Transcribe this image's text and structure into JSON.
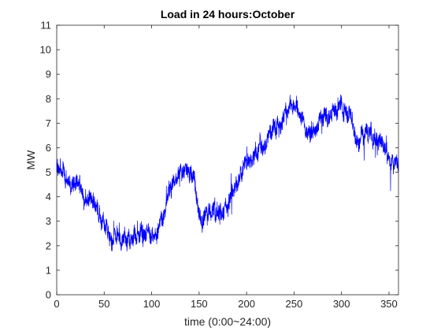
{
  "chart_data": {
    "type": "line",
    "title": "Load in 24 hours:October",
    "xlabel": "time (0:00~24:00)",
    "ylabel": "MW",
    "xlim": [
      0,
      360
    ],
    "ylim": [
      0,
      11
    ],
    "x_ticks": [
      0,
      50,
      100,
      150,
      200,
      250,
      300,
      350
    ],
    "y_ticks": [
      0,
      1,
      2,
      3,
      4,
      5,
      6,
      7,
      8,
      9,
      10,
      11
    ],
    "grid": false,
    "color": "#0000ff",
    "series": [
      {
        "x": [
          0,
          5,
          10,
          15,
          20,
          25,
          30,
          35,
          40,
          45,
          50,
          55,
          60,
          65,
          70,
          75,
          80,
          85,
          90,
          95,
          100,
          105,
          110,
          115,
          120,
          125,
          130,
          135,
          140,
          145,
          150,
          155,
          160,
          165,
          170,
          175,
          180,
          185,
          190,
          195,
          200,
          205,
          210,
          215,
          220,
          225,
          230,
          235,
          240,
          245,
          250,
          255,
          260,
          265,
          270,
          275,
          280,
          285,
          290,
          295,
          300,
          305,
          310,
          315,
          320,
          325,
          330,
          335,
          340,
          345,
          350,
          355,
          360
        ],
        "y": [
          5.3,
          5.1,
          4.8,
          4.6,
          4.4,
          4.2,
          4.0,
          3.8,
          3.6,
          3.3,
          2.7,
          2.4,
          2.2,
          2.3,
          2.2,
          2.1,
          2.3,
          2.2,
          2.4,
          2.3,
          2.1,
          2.4,
          3.0,
          3.7,
          4.3,
          4.6,
          4.9,
          5.0,
          4.8,
          4.5,
          3.3,
          3.1,
          3.5,
          3.7,
          3.5,
          3.4,
          3.6,
          4.1,
          4.5,
          5.0,
          5.4,
          5.5,
          5.8,
          6.0,
          6.4,
          6.8,
          6.7,
          6.6,
          7.6,
          7.7,
          7.9,
          7.6,
          7.1,
          6.7,
          6.6,
          6.9,
          7.2,
          7.3,
          7.3,
          7.5,
          7.6,
          7.4,
          7.0,
          6.6,
          6.5,
          6.6,
          6.4,
          6.6,
          6.3,
          6.0,
          5.6,
          5.3,
          5.4
        ],
        "noise_amplitude": 0.45
      }
    ]
  }
}
